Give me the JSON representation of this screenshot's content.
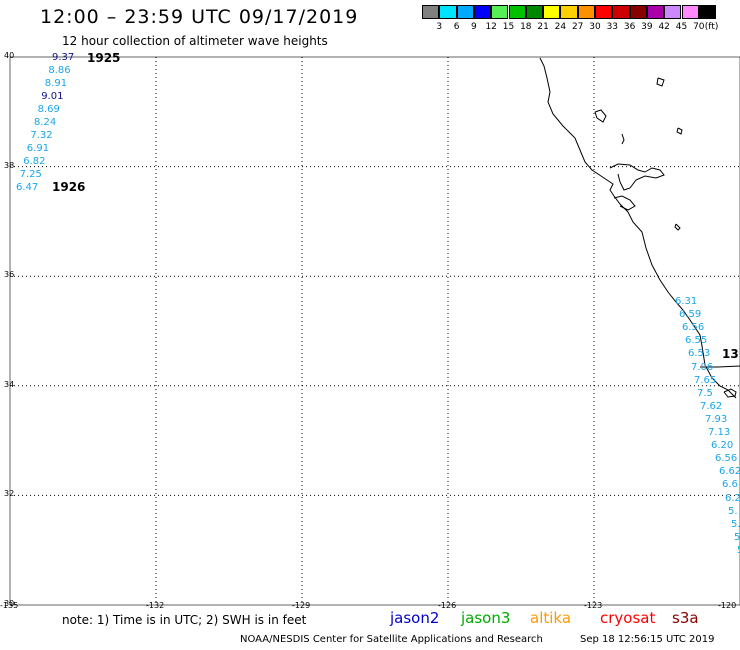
{
  "header": {
    "title": "12:00 – 23:59 UTC 09/17/2019",
    "subtitle": "12 hour collection of altimeter wave heights"
  },
  "legend": {
    "unit": "(ft)",
    "labels": [
      "3",
      "6",
      "9",
      "12",
      "15",
      "18",
      "21",
      "24",
      "27",
      "30",
      "33",
      "36",
      "39",
      "42",
      "45",
      "70"
    ],
    "colors": [
      "#808080",
      "#00e5ff",
      "#00aaff",
      "#0000ff",
      "#55ee55",
      "#00c000",
      "#008800",
      "#ffff00",
      "#ffd000",
      "#ff9000",
      "#ff0000",
      "#cc0000",
      "#880000",
      "#aa00aa",
      "#cc88ff",
      "#ff88ff",
      "#000000"
    ]
  },
  "axes": {
    "lat_labels": [
      "40",
      "38",
      "36",
      "34",
      "32",
      "30"
    ],
    "lon_labels": [
      "-135",
      "-132",
      "-129",
      "-126",
      "-123",
      "-120"
    ],
    "lat_range": [
      30,
      40
    ],
    "lon_range": [
      -135,
      -120
    ]
  },
  "tracks": [
    {
      "pass_label": "1925",
      "pass_color": "#880000",
      "heights": [
        "9.37",
        "8.86",
        "8.91",
        "9.01",
        "8.69",
        "8.24",
        "7.32",
        "6.91",
        "6.82",
        "7.25",
        "6.47"
      ],
      "dark_rows": [
        0,
        3
      ]
    },
    {
      "pass_label": "1926",
      "pass_color": "#880000"
    },
    {
      "pass_label": "13",
      "pass_color": "#f0a020",
      "heights": [
        "6.31",
        "6.59",
        "6.56",
        "6.55",
        "6.53",
        "7.06",
        "7.65",
        "7.5",
        "7.62",
        "7.93",
        "7.13",
        "6.20",
        "6.56",
        "6.62",
        "6.6",
        "6.2",
        "5.",
        "5.",
        "5",
        "5"
      ]
    }
  ],
  "footer": {
    "note": "note: 1) Time is in UTC; 2) SWH is in feet",
    "satellites": [
      {
        "name": "jason2",
        "color": "#0000cc"
      },
      {
        "name": "jason3",
        "color": "#00aa00"
      },
      {
        "name": "altika",
        "color": "#ff9900"
      },
      {
        "name": "cryosat",
        "color": "#ff0000"
      },
      {
        "name": "s3a",
        "color": "#880000"
      }
    ],
    "credit": "NOAA/NESDIS Center for Satellite Applications and Research",
    "timestamp": "Sep 18 12:56:15 UTC 2019"
  }
}
